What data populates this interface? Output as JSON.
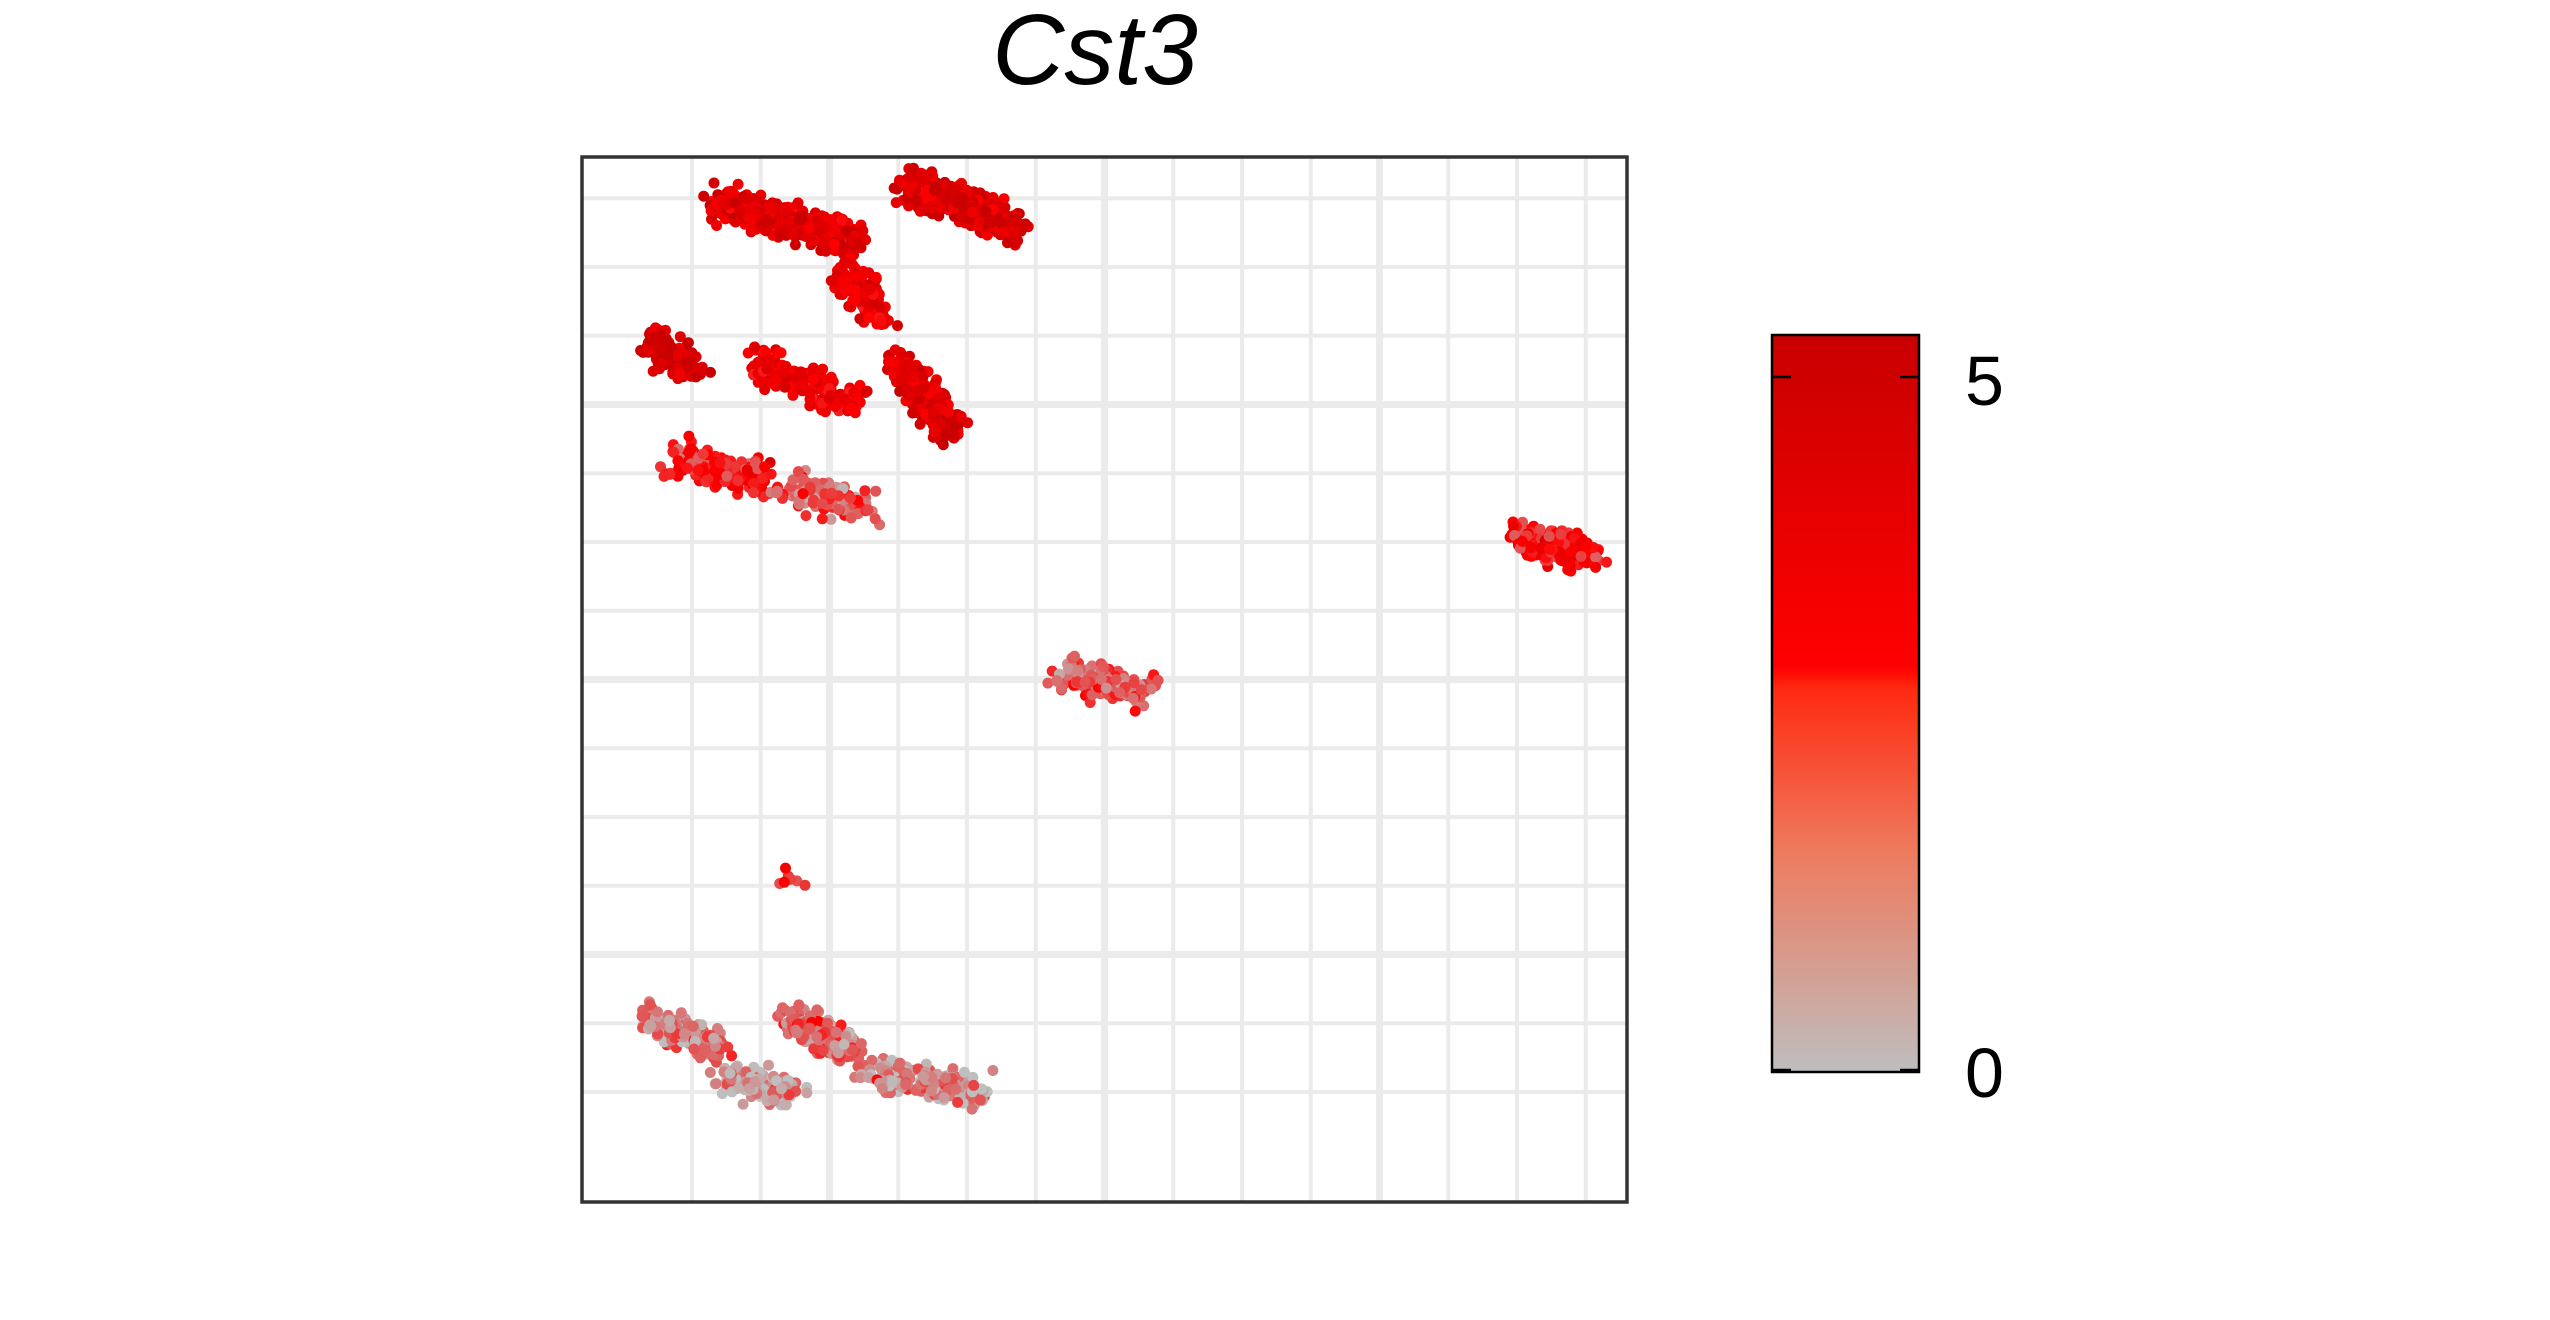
{
  "chart_data": {
    "type": "scatter",
    "title": "Cst3",
    "xlabel": "",
    "ylabel": "",
    "grid": true,
    "legend": "right",
    "colorbar": {
      "min": 0,
      "max": 5,
      "tick_labels": [
        "0",
        "5"
      ],
      "ticks": [
        0,
        5
      ],
      "low_color": "#bebebe",
      "mid_color": "#ff0000",
      "high_color": "#c80000"
    },
    "clusters": [
      {
        "x": [
          -5.6,
          -3.6
        ],
        "y": [
          6.9,
          6.4
        ],
        "n": 520,
        "level": 4.0
      },
      {
        "x": [
          -2.8,
          -1.3
        ],
        "y": [
          7.2,
          6.6
        ],
        "n": 520,
        "level": 4.3
      },
      {
        "x": [
          -3.8,
          -3.2
        ],
        "y": [
          6.0,
          5.2
        ],
        "n": 120,
        "level": 3.6
      },
      {
        "x": [
          -6.6,
          -6.0
        ],
        "y": [
          4.9,
          4.5
        ],
        "n": 130,
        "level": 4.6
      },
      {
        "x": [
          -5.0,
          -3.6
        ],
        "y": [
          4.6,
          4.0
        ],
        "n": 200,
        "level": 3.4
      },
      {
        "x": [
          -3.0,
          -2.2
        ],
        "y": [
          4.6,
          3.6
        ],
        "n": 240,
        "level": 4.2
      },
      {
        "x": [
          -6.2,
          -5.0
        ],
        "y": [
          3.2,
          2.9
        ],
        "n": 200,
        "level": 2.6
      },
      {
        "x": [
          -4.6,
          -3.4
        ],
        "y": [
          2.8,
          2.5
        ],
        "n": 120,
        "level": 1.5
      },
      {
        "x": [
          6.0,
          7.0
        ],
        "y": [
          2.1,
          1.8
        ],
        "n": 230,
        "level": 2.8
      },
      {
        "x": [
          -0.6,
          0.6
        ],
        "y": [
          0.1,
          -0.2
        ],
        "n": 170,
        "level": 1.5
      },
      {
        "x": [
          -6.6,
          -5.6
        ],
        "y": [
          -4.9,
          -5.4
        ],
        "n": 200,
        "level": 1.1
      },
      {
        "x": [
          -4.6,
          -3.6
        ],
        "y": [
          -4.9,
          -5.4
        ],
        "n": 200,
        "level": 1.3
      },
      {
        "x": [
          -3.4,
          -1.8
        ],
        "y": [
          -5.7,
          -6.0
        ],
        "n": 170,
        "level": 0.8
      },
      {
        "x": [
          -5.5,
          -4.5
        ],
        "y": [
          -5.8,
          -6.0
        ],
        "n": 120,
        "level": 0.6
      },
      {
        "x": [
          -4.6,
          -4.6
        ],
        "y": [
          -3.0,
          -3.0
        ],
        "n": 8,
        "level": 2.0
      }
    ]
  }
}
